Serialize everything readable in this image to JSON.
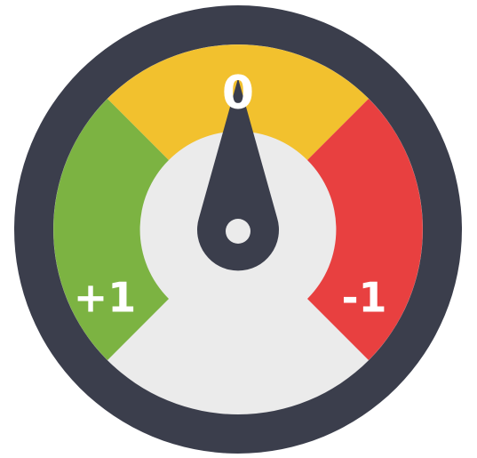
{
  "labels": {
    "top": "0",
    "left": "+1",
    "right": "-1"
  }
}
